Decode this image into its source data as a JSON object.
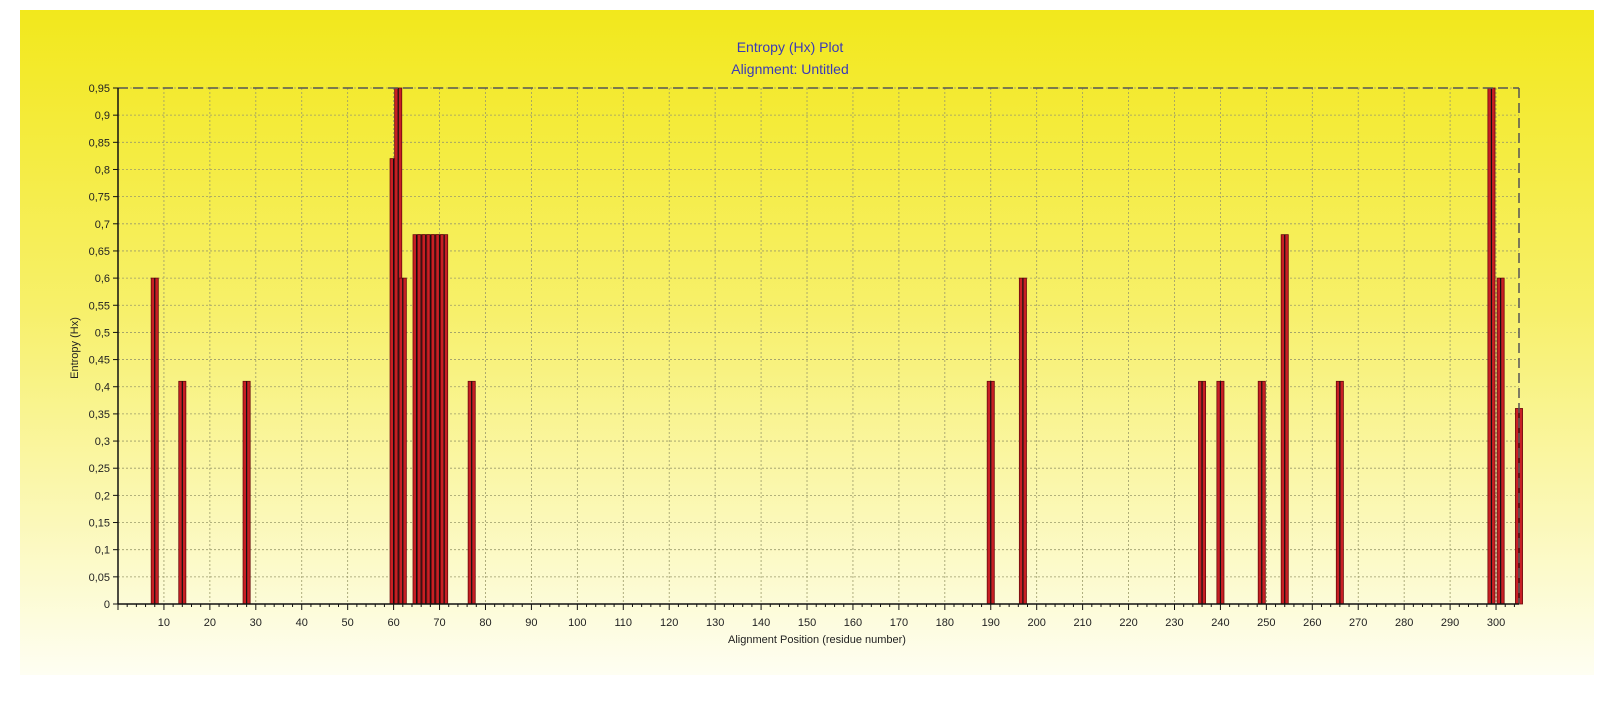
{
  "colors": {
    "background_top": "#f2e81c",
    "background_bottom": "#fefef2",
    "bar_fill": "#c81f24",
    "bar_stroke": "#6a0a0c",
    "spike_line": "#111111",
    "grid": "#9a9a6a",
    "title": "#3a3ab8"
  },
  "chart_data": {
    "type": "bar",
    "title": "Entropy (Hx) Plot",
    "subtitle": "Alignment: Untitled",
    "xlabel": "Alignment Position (residue number)",
    "ylabel": "Entropy (Hx)",
    "xlim": [
      0,
      305
    ],
    "ylim": [
      0,
      0.95
    ],
    "grid": true,
    "x_ticks": [
      "10",
      "20",
      "30",
      "40",
      "50",
      "60",
      "70",
      "80",
      "90",
      "100",
      "110",
      "120",
      "130",
      "140",
      "150",
      "160",
      "170",
      "180",
      "190",
      "200",
      "210",
      "220",
      "230",
      "240",
      "250",
      "260",
      "270",
      "280",
      "290",
      "300"
    ],
    "y_ticks": [
      "0",
      "0,05",
      "0,1",
      "0,15",
      "0,2",
      "0,25",
      "0,3",
      "0,35",
      "0,4",
      "0,45",
      "0,5",
      "0,55",
      "0,6",
      "0,65",
      "0,7",
      "0,75",
      "0,8",
      "0,85",
      "0,9",
      "0,95"
    ],
    "bars": [
      {
        "x": 8,
        "value": 0.6
      },
      {
        "x": 14,
        "value": 0.41
      },
      {
        "x": 28,
        "value": 0.41
      },
      {
        "x": 60,
        "value": 0.82
      },
      {
        "x": 61,
        "value": 0.95
      },
      {
        "x": 62,
        "value": 0.6
      },
      {
        "x": 65,
        "value": 0.68
      },
      {
        "x": 66,
        "value": 0.68
      },
      {
        "x": 67,
        "value": 0.68
      },
      {
        "x": 68,
        "value": 0.68
      },
      {
        "x": 69,
        "value": 0.68
      },
      {
        "x": 70,
        "value": 0.68
      },
      {
        "x": 71,
        "value": 0.68
      },
      {
        "x": 77,
        "value": 0.41
      },
      {
        "x": 190,
        "value": 0.41
      },
      {
        "x": 197,
        "value": 0.6
      },
      {
        "x": 236,
        "value": 0.41
      },
      {
        "x": 240,
        "value": 0.41
      },
      {
        "x": 249,
        "value": 0.41
      },
      {
        "x": 254,
        "value": 0.68
      },
      {
        "x": 266,
        "value": 0.41
      },
      {
        "x": 299,
        "value": 0.95
      },
      {
        "x": 301,
        "value": 0.6
      },
      {
        "x": 305,
        "value": 0.36
      }
    ]
  }
}
